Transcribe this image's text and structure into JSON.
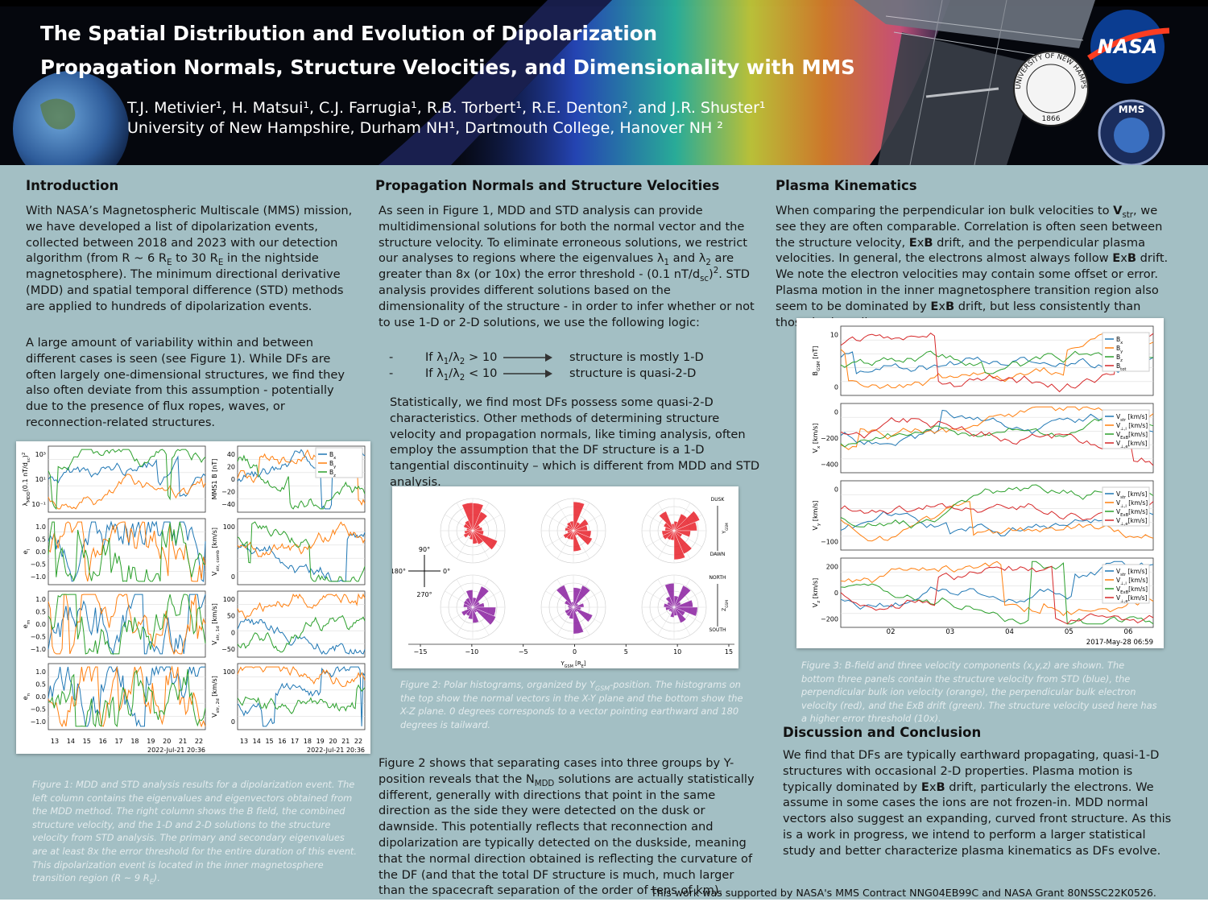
{
  "header": {
    "title_line1": "The Spatial Distribution and Evolution of Dipolarization",
    "title_line2": "Propagation Normals, Structure Velocities, and Dimensionality with MMS",
    "authors": "T.J. Metivier¹, H. Matsui¹, C.J. Farrugia¹, R.B. Torbert¹, R.E. Denton², and J.R. Shuster¹",
    "affiliations": "University of New Hampshire, Durham NH¹, Dartmouth College, Hanover NH ²",
    "logos": {
      "nasa": "NASA",
      "unh_ring": "THE UNIVERSITY OF NEW HAMPSHIRE",
      "unh_year": "1866",
      "mms": "MMS"
    }
  },
  "intro": {
    "heading": "Introduction",
    "paragraphs": [
      [
        "With NASA’s Magnetospheric Multiscale (MMS) mission, we have developed a list of dipolarization events, collected between 2018 and 2023 with our detection algorithm (from R ~ 6 R",
        {
          "sub": "E"
        },
        " to 30 R",
        {
          "sub": "E"
        },
        " in the nightside magnetosphere). The minimum directional derivative (MDD) and spatial temporal difference (STD) methods are applied to hundreds of dipolarization events."
      ],
      [
        "A large amount of variability within and between different cases is seen (see Figure 1). While DFs are often largely one-dimensional structures, we find they also often deviate from this assumption - potentially due to the presence of flux ropes, waves, or reconnection-related structures."
      ]
    ]
  },
  "fig1": {
    "left_ylabels": [
      [
        "λ",
        {
          "sub": "MDD"
        },
        "(0.1 nT/d",
        {
          "sub": "sc"
        },
        ")",
        {
          "sup": "2"
        }
      ],
      [
        "e",
        {
          "sub": "l"
        }
      ],
      [
        "e",
        {
          "sub": "m"
        }
      ],
      [
        "e",
        {
          "sub": "n"
        }
      ]
    ],
    "left_yticks": [
      [
        "10³",
        "10¹",
        "10⁻¹"
      ],
      [
        "1.0",
        "0.5",
        "0.0",
        "−0.5",
        "−1.0"
      ],
      [
        "1.0",
        "0.5",
        "0.0",
        "−0.5",
        "−1.0"
      ],
      [
        "1.0",
        "0.5",
        "0.0",
        "−0.5",
        "−1.0"
      ]
    ],
    "right_ylabels": [
      [
        "MMS1 B [nT]"
      ],
      [
        "V",
        {
          "sub": "str, comb"
        },
        " [km/s]"
      ],
      [
        "V",
        {
          "sub": "str, 1d"
        },
        " [km/s]"
      ],
      [
        "V",
        {
          "sub": "str, 2d"
        },
        " [km/s]"
      ]
    ],
    "right_yticks": [
      [
        "40",
        "20",
        "0",
        "−20",
        "−40"
      ],
      [
        "100",
        "0"
      ],
      [
        "100",
        "50",
        "0",
        "−50"
      ],
      [
        "100",
        "0"
      ]
    ],
    "legend": [
      [
        "B",
        {
          "sub": "x"
        }
      ],
      [
        "B",
        {
          "sub": "y"
        }
      ],
      [
        "B",
        {
          "sub": "z"
        }
      ]
    ],
    "xticks": [
      "13",
      "14",
      "15",
      "16",
      "17",
      "18",
      "19",
      "20",
      "21",
      "22"
    ],
    "date": "2022-Jul-21 20:36",
    "caption": [
      "Figure 1: MDD and STD analysis results for a dipolarization event. The left column contains the eigenvalues and eigenvectors obtained from the MDD method. The right column shows the B field, the combined structure velocity, and the 1-D and 2-D solutions to the structure velocity from STD analysis. The primary and secondary eigenvalues are at least 8x the error threshold for the entire duration of this event. This dipolarization event is located in the inner magnetosphere transition region (R ~ 9 R",
      {
        "sub": "E"
      },
      ")."
    ]
  },
  "propagation": {
    "heading": "Propagation Normals and Structure Velocities",
    "paragraph1": [
      "As seen in Figure 1, MDD and STD analysis can provide multidimensional solutions for both the normal vector and the structure velocity. To eliminate erroneous solutions, we restrict our analyses to regions where the eigenvalues λ",
      {
        "sub": "1"
      },
      " and λ",
      {
        "sub": "2"
      },
      " are greater than 8x (or 10x) the error threshold - (0.1 nT/d",
      {
        "sub": "sc"
      },
      ")",
      {
        "sup": "2"
      },
      ". STD analysis provides different solutions based on the dimensionality of the structure - in order to infer whether or not to use 1-D or 2-D solutions, we use the following logic:"
    ],
    "logic": [
      {
        "bullet": "-",
        "condition": [
          "If λ",
          {
            "sub": "1"
          },
          "/λ",
          {
            "sub": "2"
          },
          " > 10"
        ],
        "result": "structure is mostly 1-D"
      },
      {
        "bullet": "-",
        "condition": [
          "If λ",
          {
            "sub": "1"
          },
          "/λ",
          {
            "sub": "2"
          },
          " < 10"
        ],
        "result": "structure is quasi-2-D"
      }
    ],
    "paragraph2": [
      "Statistically, we find most DFs possess some quasi-2-D characteristics. Other methods of determining structure velocity and propagation normals, like timing analysis, often employ the assumption that the DF structure is a 1-D tangential discontinuity – which is different from MDD and STD analysis."
    ],
    "paragraph3": [
      "Figure 2 shows that separating cases into three groups by Y-position reveals that the N",
      {
        "sub": "MDD"
      },
      " solutions are actually statistically different, generally with directions that point in the same direction as the side they were detected on the dusk or dawnside. This potentially reflects that reconnection and dipolarization are typically detected on the duskside, meaning that the normal direction obtained is reflecting the curvature of the DF (and that the total DF structure is much, much larger than the spacecraft separation of the order of tens of km)."
    ]
  },
  "fig2": {
    "xticks": [
      "−15",
      "−10",
      "−5",
      "0",
      "5",
      "10",
      "15"
    ],
    "xlabel": [
      "Y",
      {
        "sub": "GSM"
      },
      " [R",
      {
        "sub": "E"
      },
      "]"
    ],
    "compass": {
      "up": "90°",
      "left": "180°",
      "right": "0°",
      "down": "270°"
    },
    "side_labels": {
      "dusk": "DUSK",
      "dawn": "DAWN",
      "north": "NORTH",
      "south": "SOUTH",
      "y_axis": [
        "Y",
        {
          "sub": "GSM"
        }
      ],
      "z_axis": [
        "Z",
        {
          "sub": "GSM"
        }
      ]
    },
    "caption": [
      "Figure 2: Polar histograms, organized by Y",
      {
        "sub": "GSM"
      },
      "-position. The histograms on the top show the normal vectors in the X-Y plane and the bottom show the X-Z plane. 0 degrees corresponds to a vector pointing earthward and 180 degrees is tailward."
    ]
  },
  "kinematics": {
    "heading": "Plasma Kinematics",
    "paragraph": [
      "When comparing the perpendicular ion bulk velocities to ",
      {
        "b": "V"
      },
      {
        "sub": "str"
      },
      ", we see they are often comparable. Correlation is often seen between the structure velocity, ",
      {
        "b": "E"
      },
      "x",
      {
        "b": "B"
      },
      " drift, and the perpendicular plasma velocities. In general, the electrons almost always follow ",
      {
        "b": "E"
      },
      "x",
      {
        "b": "B"
      },
      " drift. We note the electron velocities may contain some offset or error.  Plasma motion in the inner magnetosphere transition region also seem to be dominated by ",
      {
        "b": "E"
      },
      "x",
      {
        "b": "B"
      },
      " drift, but less consistently than those in the tail."
    ]
  },
  "fig3": {
    "ylabels": [
      [
        "B",
        {
          "sub": "GSM"
        },
        " [nT]"
      ],
      [
        "V",
        {
          "sub": "x"
        },
        " [km/s]"
      ],
      [
        "V",
        {
          "sub": "y"
        },
        " [km/s]"
      ],
      [
        "V",
        {
          "sub": "z"
        },
        " [km/s]"
      ]
    ],
    "yticks": [
      [
        "10",
        "0"
      ],
      [
        "0",
        "−200",
        "−400"
      ],
      [
        "0",
        "−100"
      ],
      [
        "200",
        "0",
        "−200"
      ]
    ],
    "b_legend": [
      [
        "B",
        {
          "sub": "x"
        }
      ],
      [
        "B",
        {
          "sub": "y"
        }
      ],
      [
        "B",
        {
          "sub": "z"
        }
      ],
      [
        "B",
        {
          "sub": "tot"
        }
      ]
    ],
    "v_legend": [
      [
        "V",
        {
          "sub": "str"
        },
        " [km/s]"
      ],
      [
        "V",
        {
          "sub": "⊥,i"
        },
        " [km/s]"
      ],
      [
        "V",
        {
          "sub": "ExB"
        },
        "[km/s]"
      ],
      [
        "V",
        {
          "sub": "⊥,e"
        },
        "[km/s]"
      ]
    ],
    "xticks": [
      "02",
      "03",
      "04",
      "05",
      "06"
    ],
    "date": "2017-May-28 06:59",
    "caption": [
      "Figure 3: B-field and three velocity components (x,y,z) are shown. The bottom three panels contain the structure velocity from STD (blue), the perpendicular bulk ion velocity (orange), the perpendicular bulk electron velocity (red), and the ExB drift (green). The structure velocity used here has a higher error threshold (10x)."
    ]
  },
  "discussion": {
    "heading": "Discussion and Conclusion",
    "paragraph": [
      "We find that DFs are typically earthward propagating, quasi-1-D structures with occasional 2-D properties. Plasma motion is typically dominated by ",
      {
        "b": "E"
      },
      "x",
      {
        "b": "B"
      },
      " drift, particularly the electrons. We assume in some cases the ions are not frozen-in. MDD normal vectors also suggest an expanding, curved front structure. As this is a work in progress, we intend to perform a larger statistical study and better characterize plasma kinematics as DFs evolve."
    ]
  },
  "footer": "This work was supported by NASA's MMS Contract NNG04EB99C and NASA Grant 80NSSC22K0526."
}
